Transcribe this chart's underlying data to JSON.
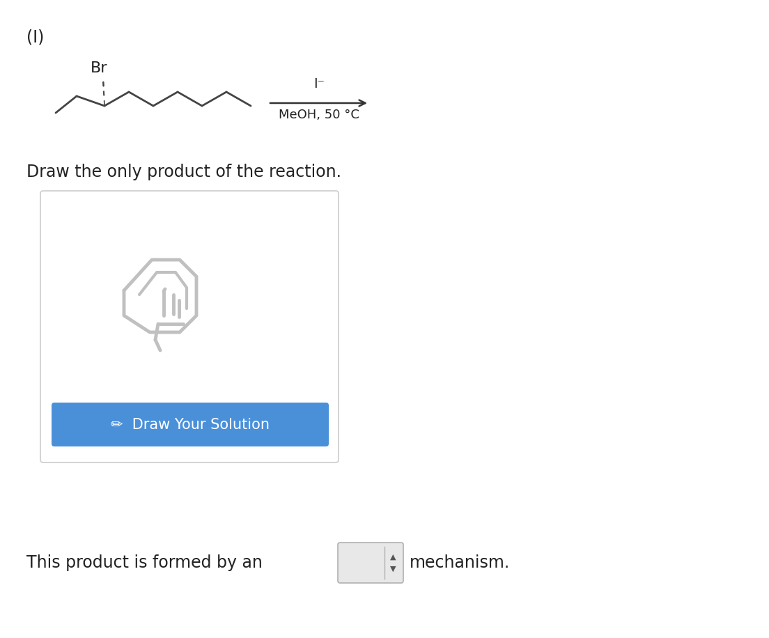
{
  "background_color": "#ffffff",
  "label_I": "(I)",
  "chain_color": "#444444",
  "br_label": "Br",
  "reagent_above": "I⁻",
  "reagent_below": "MeOH, 50 °C",
  "draw_text": "Draw the only product of the reaction.",
  "button_color": "#4a90d9",
  "button_text": "Draw Your Solution",
  "button_text_color": "#ffffff",
  "bottom_text1": "This product is formed by an",
  "bottom_text2": "mechanism.",
  "icon_color": "#c0c0c0",
  "box_edge_color": "#d0d0d0",
  "box_face_color": "#ffffff"
}
